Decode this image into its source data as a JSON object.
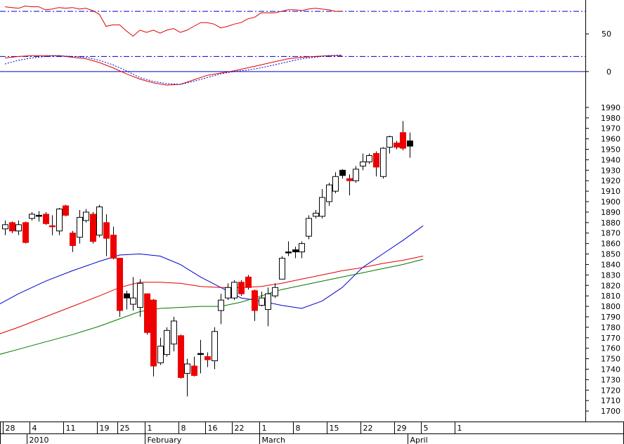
{
  "chart_data": [
    {
      "type": "line",
      "panel": "oscillator",
      "ylim": [
        -30,
        95
      ],
      "yticks": [
        50,
        0
      ],
      "reference_lines": [
        {
          "value": 80,
          "style": "dash-dot",
          "color": "#0000cc"
        },
        {
          "value": 20,
          "style": "dash-dot",
          "color": "#0000cc"
        },
        {
          "value": 0,
          "style": "solid",
          "color": "#0000cc"
        }
      ],
      "series": [
        {
          "color": "#dd0000",
          "style": "solid",
          "x": [
            0,
            1,
            2,
            3,
            4,
            5,
            6,
            7,
            8,
            9,
            10,
            11,
            12,
            13,
            14,
            15,
            16,
            17,
            18,
            19,
            20,
            21,
            22,
            23,
            24,
            25,
            26,
            27,
            28,
            29,
            30,
            31,
            32,
            33,
            34,
            35,
            36,
            37,
            38,
            39,
            40,
            41,
            42,
            43,
            44,
            45,
            46,
            47,
            48,
            49,
            50
          ],
          "values": [
            86,
            85,
            84,
            87,
            86,
            86,
            82,
            83,
            85,
            84,
            85,
            83,
            84,
            81,
            76,
            60,
            62,
            62,
            54,
            47,
            55,
            52,
            55,
            51,
            55,
            57,
            52,
            55,
            60,
            65,
            65,
            63,
            58,
            60,
            63,
            65,
            70,
            72,
            78,
            78,
            78,
            80,
            82,
            82,
            81,
            83,
            84,
            83,
            82,
            80,
            80
          ]
        },
        {
          "name": "",
          "color": "#dd0000",
          "style": "solid",
          "x": [
            0,
            2,
            4,
            6,
            8,
            10,
            12,
            14,
            16,
            18,
            20,
            22,
            24,
            26,
            28,
            30,
            32,
            34,
            36,
            38,
            40,
            42,
            44,
            46,
            48,
            50
          ],
          "values": [
            18,
            20,
            21,
            21,
            21,
            19,
            17,
            12,
            5,
            -3,
            -10,
            -15,
            -18,
            -17,
            -11,
            -5,
            -2,
            1,
            5,
            9,
            13,
            17,
            19,
            20,
            21,
            21
          ]
        },
        {
          "color": "#0000cc",
          "style": "dotted",
          "x": [
            0,
            2,
            4,
            6,
            8,
            10,
            12,
            14,
            16,
            18,
            20,
            22,
            24,
            26,
            28,
            30,
            32,
            34,
            36,
            38,
            40,
            42,
            44,
            46,
            48,
            50
          ],
          "values": [
            10,
            15,
            18,
            20,
            21,
            20,
            19,
            15,
            9,
            1,
            -8,
            -13,
            -16,
            -17,
            -13,
            -8,
            -3,
            0,
            2,
            5,
            9,
            13,
            17,
            19,
            21,
            22
          ]
        }
      ]
    },
    {
      "type": "candlestick",
      "panel": "price",
      "ylim": [
        1690,
        2000
      ],
      "yticks": [
        1990,
        1980,
        1970,
        1960,
        1950,
        1940,
        1930,
        1920,
        1910,
        1900,
        1890,
        1880,
        1870,
        1860,
        1850,
        1840,
        1830,
        1820,
        1810,
        1800,
        1790,
        1780,
        1770,
        1760,
        1750,
        1740,
        1730,
        1720,
        1710,
        1700
      ],
      "x_tick_labels": [
        {
          "x": 0,
          "label": "28"
        },
        {
          "x": 4,
          "label": "4"
        },
        {
          "x": 9,
          "label": "11"
        },
        {
          "x": 14,
          "label": "19"
        },
        {
          "x": 17,
          "label": "25"
        },
        {
          "x": 21,
          "label": "1"
        },
        {
          "x": 26,
          "label": "8"
        },
        {
          "x": 30,
          "label": "16"
        },
        {
          "x": 34,
          "label": "22"
        },
        {
          "x": 38,
          "label": "1"
        },
        {
          "x": 43,
          "label": "8"
        },
        {
          "x": 48,
          "label": "15"
        },
        {
          "x": 53,
          "label": "22"
        },
        {
          "x": 58,
          "label": "29"
        },
        {
          "x": 62,
          "label": "5"
        },
        {
          "x": 67,
          "label": "1"
        }
      ],
      "month_labels": [
        {
          "x": 3.5,
          "label": "2010"
        },
        {
          "x": 21,
          "label": "February"
        },
        {
          "x": 38,
          "label": "March"
        },
        {
          "x": 60,
          "label": "April"
        }
      ],
      "candles": [
        {
          "x": 0,
          "open": 1874,
          "high": 1882,
          "low": 1868,
          "close": 1878,
          "color": "white"
        },
        {
          "x": 1,
          "open": 1880,
          "high": 1881,
          "low": 1870,
          "close": 1872,
          "color": "red"
        },
        {
          "x": 2,
          "open": 1872,
          "high": 1882,
          "low": 1868,
          "close": 1878,
          "color": "white"
        },
        {
          "x": 3,
          "open": 1880,
          "high": 1881,
          "low": 1860,
          "close": 1861,
          "color": "red"
        },
        {
          "x": 4,
          "open": 1884,
          "high": 1890,
          "low": 1882,
          "close": 1888,
          "color": "white"
        },
        {
          "x": 5,
          "open": 1887,
          "high": 1891,
          "low": 1881,
          "close": 1887,
          "color": "black"
        },
        {
          "x": 6,
          "open": 1888,
          "high": 1890,
          "low": 1878,
          "close": 1879,
          "color": "red"
        },
        {
          "x": 7,
          "open": 1877,
          "high": 1887,
          "low": 1868,
          "close": 1876,
          "color": "red"
        },
        {
          "x": 8,
          "open": 1872,
          "high": 1894,
          "low": 1868,
          "close": 1893,
          "color": "white"
        },
        {
          "x": 9,
          "open": 1896,
          "high": 1897,
          "low": 1886,
          "close": 1887,
          "color": "red"
        },
        {
          "x": 10,
          "open": 1870,
          "high": 1872,
          "low": 1852,
          "close": 1858,
          "color": "red"
        },
        {
          "x": 11,
          "open": 1866,
          "high": 1892,
          "low": 1860,
          "close": 1885,
          "color": "white"
        },
        {
          "x": 12,
          "open": 1882,
          "high": 1893,
          "low": 1880,
          "close": 1890,
          "color": "white"
        },
        {
          "x": 13,
          "open": 1888,
          "high": 1890,
          "low": 1860,
          "close": 1862,
          "color": "red"
        },
        {
          "x": 14,
          "open": 1868,
          "high": 1897,
          "low": 1866,
          "close": 1895,
          "color": "white"
        },
        {
          "x": 15,
          "open": 1880,
          "high": 1888,
          "low": 1848,
          "close": 1865,
          "color": "red"
        },
        {
          "x": 16,
          "open": 1868,
          "high": 1876,
          "low": 1845,
          "close": 1846,
          "color": "red"
        },
        {
          "x": 17,
          "open": 1846,
          "high": 1846,
          "low": 1790,
          "close": 1796,
          "color": "red"
        },
        {
          "x": 18,
          "open": 1812,
          "high": 1815,
          "low": 1797,
          "close": 1808,
          "color": "black"
        },
        {
          "x": 19,
          "open": 1802,
          "high": 1828,
          "low": 1796,
          "close": 1808,
          "color": "white"
        },
        {
          "x": 20,
          "open": 1799,
          "high": 1826,
          "low": 1790,
          "close": 1822,
          "color": "white"
        },
        {
          "x": 21,
          "open": 1812,
          "high": 1812,
          "low": 1773,
          "close": 1775,
          "color": "red"
        },
        {
          "x": 22,
          "open": 1806,
          "high": 1807,
          "low": 1733,
          "close": 1743,
          "color": "red"
        },
        {
          "x": 23,
          "open": 1746,
          "high": 1770,
          "low": 1744,
          "close": 1762,
          "color": "white"
        },
        {
          "x": 24,
          "open": 1754,
          "high": 1780,
          "low": 1752,
          "close": 1777,
          "color": "white"
        },
        {
          "x": 25,
          "open": 1764,
          "high": 1790,
          "low": 1757,
          "close": 1786,
          "color": "white"
        },
        {
          "x": 26,
          "open": 1772,
          "high": 1773,
          "low": 1731,
          "close": 1732,
          "color": "red"
        },
        {
          "x": 27,
          "open": 1736,
          "high": 1750,
          "low": 1714,
          "close": 1745,
          "color": "white"
        },
        {
          "x": 28,
          "open": 1743,
          "high": 1752,
          "low": 1733,
          "close": 1734,
          "color": "red"
        },
        {
          "x": 29,
          "open": 1755,
          "high": 1768,
          "low": 1736,
          "close": 1755,
          "color": "black"
        },
        {
          "x": 30,
          "open": 1752,
          "high": 1756,
          "low": 1742,
          "close": 1749,
          "color": "red"
        },
        {
          "x": 31,
          "open": 1748,
          "high": 1780,
          "low": 1740,
          "close": 1776,
          "color": "white"
        },
        {
          "x": 32,
          "open": 1796,
          "high": 1812,
          "low": 1783,
          "close": 1806,
          "color": "white"
        },
        {
          "x": 33,
          "open": 1808,
          "high": 1822,
          "low": 1806,
          "close": 1818,
          "color": "white"
        },
        {
          "x": 34,
          "open": 1808,
          "high": 1825,
          "low": 1806,
          "close": 1823,
          "color": "white"
        },
        {
          "x": 35,
          "open": 1812,
          "high": 1825,
          "low": 1810,
          "close": 1823,
          "color": "red"
        },
        {
          "x": 36,
          "open": 1828,
          "high": 1830,
          "low": 1816,
          "close": 1818,
          "color": "red"
        },
        {
          "x": 37,
          "open": 1815,
          "high": 1816,
          "low": 1786,
          "close": 1796,
          "color": "red"
        },
        {
          "x": 38,
          "open": 1808,
          "high": 1814,
          "low": 1800,
          "close": 1801,
          "color": "white"
        },
        {
          "x": 39,
          "open": 1797,
          "high": 1818,
          "low": 1781,
          "close": 1812,
          "color": "white"
        },
        {
          "x": 40,
          "open": 1810,
          "high": 1822,
          "low": 1808,
          "close": 1818,
          "color": "white"
        },
        {
          "x": 41,
          "open": 1826,
          "high": 1848,
          "low": 1826,
          "close": 1846,
          "color": "white"
        },
        {
          "x": 42,
          "open": 1852,
          "high": 1862,
          "low": 1848,
          "close": 1851,
          "color": "black"
        },
        {
          "x": 43,
          "open": 1854,
          "high": 1857,
          "low": 1846,
          "close": 1852,
          "color": "black"
        },
        {
          "x": 44,
          "open": 1852,
          "high": 1862,
          "low": 1846,
          "close": 1860,
          "color": "white"
        },
        {
          "x": 45,
          "open": 1867,
          "high": 1887,
          "low": 1864,
          "close": 1884,
          "color": "white"
        },
        {
          "x": 46,
          "open": 1886,
          "high": 1892,
          "low": 1884,
          "close": 1889,
          "color": "white"
        },
        {
          "x": 47,
          "open": 1886,
          "high": 1912,
          "low": 1884,
          "close": 1904,
          "color": "white"
        },
        {
          "x": 48,
          "open": 1900,
          "high": 1918,
          "low": 1896,
          "close": 1916,
          "color": "white"
        },
        {
          "x": 49,
          "open": 1910,
          "high": 1928,
          "low": 1908,
          "close": 1924,
          "color": "white"
        },
        {
          "x": 50,
          "open": 1930,
          "high": 1931,
          "low": 1922,
          "close": 1925,
          "color": "black"
        },
        {
          "x": 51,
          "open": 1922,
          "high": 1926,
          "low": 1906,
          "close": 1920,
          "color": "red"
        },
        {
          "x": 52,
          "open": 1920,
          "high": 1934,
          "low": 1918,
          "close": 1931,
          "color": "white"
        },
        {
          "x": 53,
          "open": 1934,
          "high": 1946,
          "low": 1930,
          "close": 1938,
          "color": "white"
        },
        {
          "x": 54,
          "open": 1938,
          "high": 1946,
          "low": 1936,
          "close": 1944,
          "color": "white"
        },
        {
          "x": 55,
          "open": 1946,
          "high": 1948,
          "low": 1924,
          "close": 1933,
          "color": "red"
        },
        {
          "x": 56,
          "open": 1924,
          "high": 1952,
          "low": 1922,
          "close": 1951,
          "color": "white"
        },
        {
          "x": 57,
          "open": 1952,
          "high": 1963,
          "low": 1946,
          "close": 1962,
          "color": "white"
        },
        {
          "x": 58,
          "open": 1956,
          "high": 1958,
          "low": 1950,
          "close": 1952,
          "color": "red"
        },
        {
          "x": 59,
          "open": 1966,
          "high": 1977,
          "low": 1949,
          "close": 1951,
          "color": "red"
        },
        {
          "x": 60,
          "open": 1958,
          "high": 1966,
          "low": 1942,
          "close": 1953,
          "color": "black"
        }
      ],
      "series": [
        {
          "color": "#0000cc",
          "x": [
            -2,
            2,
            6,
            10,
            14,
            17,
            20,
            23,
            26,
            29,
            32,
            35,
            38,
            41,
            44,
            47,
            50,
            53,
            56,
            59,
            62
          ],
          "values": [
            1798,
            1812,
            1824,
            1834,
            1843,
            1849,
            1850,
            1848,
            1840,
            1828,
            1818,
            1808,
            1805,
            1801,
            1798,
            1805,
            1818,
            1837,
            1850,
            1863,
            1877
          ]
        },
        {
          "color": "#dd0000",
          "x": [
            -2,
            2,
            6,
            10,
            14,
            17,
            20,
            23,
            26,
            29,
            32,
            35,
            38,
            41,
            44,
            47,
            50,
            53,
            56,
            59,
            62
          ],
          "values": [
            1771,
            1780,
            1790,
            1800,
            1810,
            1818,
            1823,
            1823,
            1822,
            1819,
            1818,
            1818,
            1819,
            1822,
            1826,
            1830,
            1834,
            1837,
            1841,
            1844,
            1848
          ]
        },
        {
          "color": "#007700",
          "x": [
            -2,
            2,
            6,
            10,
            14,
            17,
            20,
            23,
            26,
            29,
            32,
            35,
            38,
            41,
            44,
            47,
            50,
            53,
            56,
            59,
            62
          ],
          "values": [
            1752,
            1759,
            1766,
            1773,
            1781,
            1788,
            1795,
            1798,
            1799,
            1800,
            1800,
            1804,
            1810,
            1816,
            1820,
            1824,
            1828,
            1832,
            1836,
            1840,
            1845
          ]
        }
      ]
    }
  ]
}
